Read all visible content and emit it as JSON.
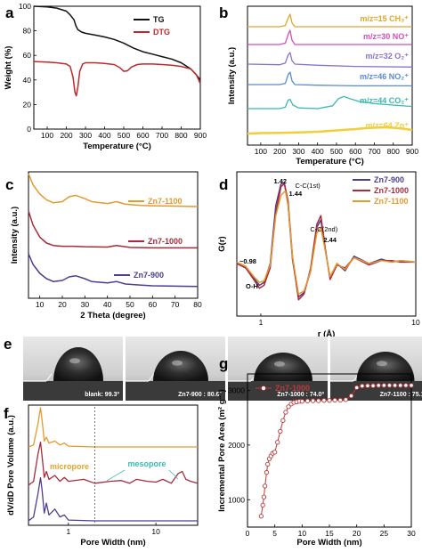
{
  "colors": {
    "tg": "#111111",
    "dtg": "#c0292b",
    "ch3": "#e0a52a",
    "no": "#d44fb7",
    "o2": "#8a72c8",
    "no2": "#5b8bd0",
    "co2": "#3bb8b0",
    "zn": "#f0cf3a",
    "zn900": "#4e3d8f",
    "zn1000": "#a82b3a",
    "zn1100": "#e59a2f",
    "micro_label": "#e0a52a",
    "meso_label": "#3bb8b0",
    "g_series": "#b83a3a"
  },
  "chart_data": [
    {
      "id": "a",
      "panel_label": "a",
      "type": "line",
      "xlabel": "Temperature (°C)",
      "ylabel": "Weight (%)",
      "xlim": [
        30,
        900
      ],
      "ylim": [
        0,
        100
      ],
      "xticks": [
        100,
        200,
        300,
        400,
        500,
        600,
        700,
        800,
        900
      ],
      "yticks": [
        0,
        20,
        40,
        60,
        80,
        100
      ],
      "series": [
        {
          "name": "TG",
          "x": [
            30,
            100,
            150,
            200,
            220,
            240,
            250,
            260,
            280,
            300,
            350,
            400,
            450,
            500,
            550,
            600,
            650,
            700,
            750,
            800,
            850,
            880,
            900
          ],
          "y": [
            100,
            99.5,
            98.5,
            96,
            93,
            89,
            84,
            81,
            79,
            78,
            76.5,
            75,
            73,
            70,
            66,
            63,
            61,
            59,
            57,
            54,
            49,
            44,
            40
          ]
        },
        {
          "name": "DTG",
          "x": [
            30,
            100,
            150,
            200,
            220,
            235,
            245,
            252,
            260,
            270,
            285,
            300,
            350,
            400,
            450,
            480,
            500,
            520,
            540,
            570,
            600,
            650,
            700,
            750,
            800,
            850,
            880,
            900
          ],
          "y": [
            55,
            54.5,
            54,
            53,
            51,
            42,
            30,
            27,
            34,
            47,
            53,
            54,
            54,
            53.5,
            52.5,
            50,
            47,
            47.5,
            50.5,
            52.5,
            53,
            53,
            52.5,
            52,
            51,
            49,
            44,
            37
          ]
        }
      ]
    },
    {
      "id": "b",
      "panel_label": "b",
      "type": "line",
      "xlabel": "Temperature (°C)",
      "ylabel": "Intensity (a.u.)",
      "xlim": [
        30,
        900
      ],
      "xticks": [
        100,
        200,
        300,
        400,
        500,
        600,
        700,
        800,
        900
      ],
      "series": [
        {
          "name": "m/z=15 CH₃⁺",
          "x": [
            30,
            200,
            230,
            245,
            255,
            265,
            280,
            400,
            600,
            900
          ],
          "y": [
            0,
            0,
            0.1,
            0.7,
            1,
            0.3,
            0,
            0,
            0,
            0
          ]
        },
        {
          "name": "m/z=30 NO⁺",
          "x": [
            30,
            200,
            230,
            245,
            255,
            265,
            280,
            400,
            600,
            900
          ],
          "y": [
            0,
            0,
            0.1,
            0.7,
            1,
            0.3,
            0,
            0,
            0,
            0
          ]
        },
        {
          "name": "m/z=32 O₂⁺",
          "x": [
            30,
            200,
            230,
            245,
            255,
            265,
            280,
            400,
            600,
            900
          ],
          "y": [
            0,
            -0.05,
            0.1,
            0.8,
            1,
            0.3,
            0,
            -0.1,
            -0.2,
            -0.25
          ]
        },
        {
          "name": "m/z=46 NO₂⁺",
          "x": [
            30,
            200,
            230,
            245,
            255,
            265,
            280,
            400,
            600,
            900
          ],
          "y": [
            0,
            0,
            0.1,
            0.8,
            1,
            0.3,
            0,
            -0.05,
            -0.1,
            -0.1
          ]
        },
        {
          "name": "m/z=44 CO₂⁺",
          "x": [
            30,
            200,
            230,
            245,
            255,
            270,
            300,
            400,
            480,
            510,
            540,
            570,
            620,
            700,
            800,
            900
          ],
          "y": [
            0,
            0,
            0.1,
            0.6,
            0.65,
            0.25,
            0.05,
            0,
            0.2,
            0.7,
            0.85,
            0.7,
            0.5,
            0.35,
            0.25,
            0.15
          ]
        },
        {
          "name": "m/z=64 Zn⁺",
          "x": [
            30,
            100,
            200,
            300,
            400,
            500,
            600,
            650,
            700,
            750,
            800,
            850,
            900
          ],
          "y": [
            0,
            0.05,
            0.08,
            0.12,
            0.2,
            0.35,
            0.5,
            0.6,
            0.65,
            0.7,
            0.65,
            0.55,
            0.4
          ]
        }
      ]
    },
    {
      "id": "c",
      "panel_label": "c",
      "type": "line",
      "xlabel": "2 Theta (degree)",
      "ylabel": "Intensity (a.u.)",
      "xlim": [
        5,
        80
      ],
      "xticks": [
        10,
        20,
        30,
        40,
        50,
        60,
        70,
        80
      ],
      "series": [
        {
          "name": "Zn7-1100",
          "x": [
            5,
            7,
            10,
            13,
            16,
            20,
            23,
            26,
            30,
            33,
            40,
            44,
            48,
            55,
            60,
            70,
            80
          ],
          "y": [
            1.0,
            0.7,
            0.45,
            0.3,
            0.22,
            0.25,
            0.38,
            0.42,
            0.33,
            0.25,
            0.2,
            0.25,
            0.18,
            0.15,
            0.14,
            0.13,
            0.12
          ]
        },
        {
          "name": "Zn7-1000",
          "x": [
            5,
            7,
            10,
            13,
            16,
            20,
            25,
            30,
            40,
            44,
            50,
            60,
            70,
            80
          ],
          "y": [
            1.0,
            0.65,
            0.35,
            0.2,
            0.14,
            0.12,
            0.12,
            0.11,
            0.1,
            0.14,
            0.09,
            0.08,
            0.08,
            0.08
          ]
        },
        {
          "name": "Zn7-900",
          "x": [
            5,
            7,
            10,
            13,
            16,
            20,
            23,
            26,
            30,
            33,
            40,
            44,
            48,
            55,
            60,
            70,
            80
          ],
          "y": [
            1.0,
            0.7,
            0.45,
            0.3,
            0.22,
            0.25,
            0.35,
            0.38,
            0.3,
            0.22,
            0.18,
            0.22,
            0.15,
            0.12,
            0.1,
            0.09,
            0.08
          ]
        }
      ]
    },
    {
      "id": "d",
      "panel_label": "d",
      "type": "line",
      "xlabel": "r (Å)",
      "ylabel": "G(r)",
      "xscale": "log",
      "xlim": [
        0.7,
        10
      ],
      "xticks": [
        1,
        10
      ],
      "annotations": [
        "1.42",
        "C-C(1st)",
        "1.44",
        "C-C(2nd)",
        "2.44",
        "0.98",
        "O-H"
      ],
      "series": [
        {
          "name": "Zn7-900",
          "x": [
            0.7,
            0.8,
            0.9,
            0.98,
            1.05,
            1.15,
            1.25,
            1.35,
            1.42,
            1.5,
            1.6,
            1.75,
            1.9,
            2.1,
            2.3,
            2.44,
            2.6,
            2.8,
            3.1,
            3.5,
            4,
            5,
            6,
            7,
            8,
            10
          ],
          "y": [
            0.45,
            0.42,
            0.35,
            0.3,
            0.32,
            0.45,
            0.85,
            1.0,
            1.0,
            0.85,
            0.48,
            0.22,
            0.25,
            0.4,
            0.7,
            0.75,
            0.55,
            0.35,
            0.45,
            0.4,
            0.5,
            0.45,
            0.48,
            0.46,
            0.47,
            0.46
          ]
        },
        {
          "name": "Zn7-1000",
          "x": [
            0.7,
            0.8,
            0.9,
            0.98,
            1.05,
            1.15,
            1.25,
            1.35,
            1.42,
            1.5,
            1.6,
            1.75,
            1.9,
            2.1,
            2.3,
            2.44,
            2.6,
            2.8,
            3.1,
            3.5,
            4,
            5,
            6,
            7,
            8,
            10
          ],
          "y": [
            0.45,
            0.42,
            0.34,
            0.28,
            0.3,
            0.42,
            0.8,
            0.98,
            1.0,
            0.88,
            0.5,
            0.2,
            0.24,
            0.42,
            0.72,
            0.78,
            0.56,
            0.34,
            0.44,
            0.42,
            0.49,
            0.44,
            0.47,
            0.47,
            0.46,
            0.46
          ]
        },
        {
          "name": "Zn7-1100",
          "x": [
            0.7,
            0.8,
            0.9,
            0.98,
            1.05,
            1.15,
            1.25,
            1.35,
            1.44,
            1.5,
            1.6,
            1.75,
            1.9,
            2.1,
            2.3,
            2.44,
            2.6,
            2.8,
            3.1,
            3.5,
            4,
            5,
            6,
            7,
            8,
            10
          ],
          "y": [
            0.46,
            0.43,
            0.36,
            0.32,
            0.33,
            0.44,
            0.78,
            0.92,
            0.95,
            0.85,
            0.5,
            0.24,
            0.26,
            0.4,
            0.66,
            0.7,
            0.54,
            0.36,
            0.45,
            0.41,
            0.49,
            0.45,
            0.47,
            0.46,
            0.47,
            0.46
          ]
        }
      ]
    },
    {
      "id": "f",
      "panel_label": "f",
      "type": "line",
      "xlabel": "Pore Width (nm)",
      "ylabel": "dV/dD Pore Volume (a.u.)",
      "xscale": "log",
      "xlim": [
        0.35,
        30
      ],
      "xticks": [
        1,
        10
      ],
      "annotations": [
        "micropore",
        "mesopore"
      ],
      "series": [
        {
          "name": "Zn7-1100",
          "x": [
            0.35,
            0.4,
            0.45,
            0.48,
            0.5,
            0.53,
            0.56,
            0.6,
            0.7,
            0.8,
            0.9,
            1,
            2,
            5,
            10,
            30
          ],
          "y": [
            0,
            0.05,
            0.6,
            1.0,
            0.7,
            0.15,
            0.25,
            0.1,
            0.15,
            0.05,
            0.1,
            0.02,
            0,
            0,
            0,
            0
          ]
        },
        {
          "name": "Zn7-1000",
          "x": [
            0.35,
            0.4,
            0.45,
            0.48,
            0.5,
            0.53,
            0.56,
            0.6,
            0.7,
            0.8,
            0.9,
            1,
            1.5,
            2,
            3,
            4,
            5,
            6,
            8,
            10,
            12,
            15,
            18,
            20,
            22,
            25,
            30
          ],
          "y": [
            0,
            0.1,
            0.8,
            1.1,
            0.75,
            0.2,
            0.35,
            0.15,
            0.25,
            0.1,
            0.2,
            0.1,
            0.15,
            0.05,
            0.1,
            0.12,
            0.05,
            0.15,
            0.1,
            0.08,
            0.15,
            0.05,
            0.3,
            0.35,
            0.15,
            0.1,
            0.05
          ]
        },
        {
          "name": "Zn7-900",
          "x": [
            0.35,
            0.4,
            0.45,
            0.48,
            0.5,
            0.53,
            0.56,
            0.6,
            0.7,
            0.8,
            0.9,
            1,
            2,
            5,
            10,
            30
          ],
          "y": [
            0,
            0.1,
            0.7,
            1.1,
            0.8,
            0.2,
            0.45,
            0.15,
            0.3,
            0.1,
            0.15,
            0.02,
            0,
            0,
            0,
            0
          ]
        }
      ]
    },
    {
      "id": "g",
      "panel_label": "g",
      "type": "line",
      "xlabel": "Pore Width (nm)",
      "ylabel": "Incremental Pore Area (m² g⁻¹)",
      "xlim": [
        0,
        30
      ],
      "ylim": [
        500,
        3300
      ],
      "xticks": [
        0,
        5,
        10,
        15,
        20,
        25,
        30
      ],
      "yticks": [
        1000,
        2000,
        3000
      ],
      "series": [
        {
          "name": "Zn7-1000",
          "x": [
            2.5,
            2.8,
            3.0,
            3.2,
            3.5,
            3.7,
            4.0,
            4.3,
            4.6,
            5.0,
            5.5,
            6,
            6.5,
            7,
            7.5,
            8,
            8.5,
            9,
            9.5,
            10,
            11,
            12,
            13,
            14,
            15,
            16,
            17,
            18,
            19,
            20,
            21,
            22,
            23,
            24,
            25,
            26,
            27,
            28,
            29,
            30
          ],
          "y": [
            700,
            900,
            1050,
            1250,
            1500,
            1650,
            1750,
            1800,
            1850,
            1870,
            2050,
            2250,
            2450,
            2600,
            2700,
            2750,
            2780,
            2790,
            2800,
            2800,
            2805,
            2810,
            2810,
            2815,
            2815,
            2820,
            2820,
            2830,
            2900,
            3050,
            3080,
            3085,
            3085,
            3090,
            3090,
            3090,
            3090,
            3090,
            3090,
            3090
          ]
        }
      ]
    }
  ],
  "panel_e": {
    "panel_label": "e",
    "captions": [
      "blank: 99.3º",
      "Zn7-900 : 80.6º",
      "Zn7-1000 : 74.0º",
      "Zn7-1100 : 75.1º"
    ]
  },
  "legend": {
    "a": [
      "TG",
      "DTG"
    ],
    "b": [
      "m/z=15 CH₃⁺",
      "m/z=30 NO⁺",
      "m/z=32 O₂⁺",
      "m/z=46 NO₂⁺",
      "m/z=44 CO₂⁺",
      "m/z=64 Zn⁺"
    ],
    "c": [
      "Zn7-1100",
      "Zn7-1000",
      "Zn7-900"
    ],
    "d": [
      "Zn7-900",
      "Zn7-1000",
      "Zn7-1100"
    ],
    "g": [
      "Zn7-1000"
    ]
  }
}
